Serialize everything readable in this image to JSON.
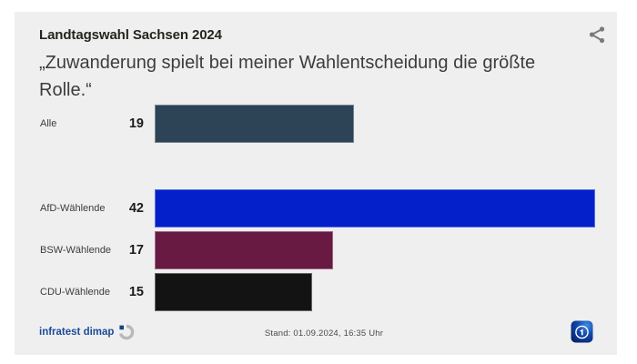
{
  "window": {
    "background": "#ffffff",
    "card_background": "#efefef"
  },
  "header": {
    "kicker": "Landtagswahl Sachsen 2024",
    "headline": "„Zuwanderung spielt bei meiner Wahlentscheidung die größte Rolle.“"
  },
  "icons": {
    "share": "share-icon",
    "source_logo": "infratest-dimap-swirl-icon",
    "broadcaster_logo": "ard-logo-icon"
  },
  "chart_data": {
    "type": "bar",
    "orientation": "horizontal",
    "title": "„Zuwanderung spielt bei meiner Wahlentscheidung die größte Rolle.“",
    "kicker": "Landtagswahl Sachsen 2024",
    "categories": [
      "Alle",
      "AfD-Wählende",
      "BSW-Wählende",
      "CDU-Wählende"
    ],
    "values": [
      19,
      42,
      17,
      15
    ],
    "bar_colors": [
      "#2d4356",
      "#0420cb",
      "#681a42",
      "#131313"
    ],
    "xlim": [
      0,
      42
    ],
    "grid": false,
    "legend": false,
    "value_label_position": "left-of-bar"
  },
  "footer": {
    "source_label": "infratest dimap",
    "status_text": "Stand: 01.09.2024, 16:35 Uhr"
  },
  "colors": {
    "kicker_text": "#24241f",
    "headline_text": "#3d3d3d",
    "category_text": "#3c3c3c",
    "value_text": "#1b1b1b",
    "source_text": "#1d4b97",
    "status_text": "#4a4a4a",
    "share_icon": "#7a7a7a",
    "ard_blue": "#0d3a9e"
  }
}
